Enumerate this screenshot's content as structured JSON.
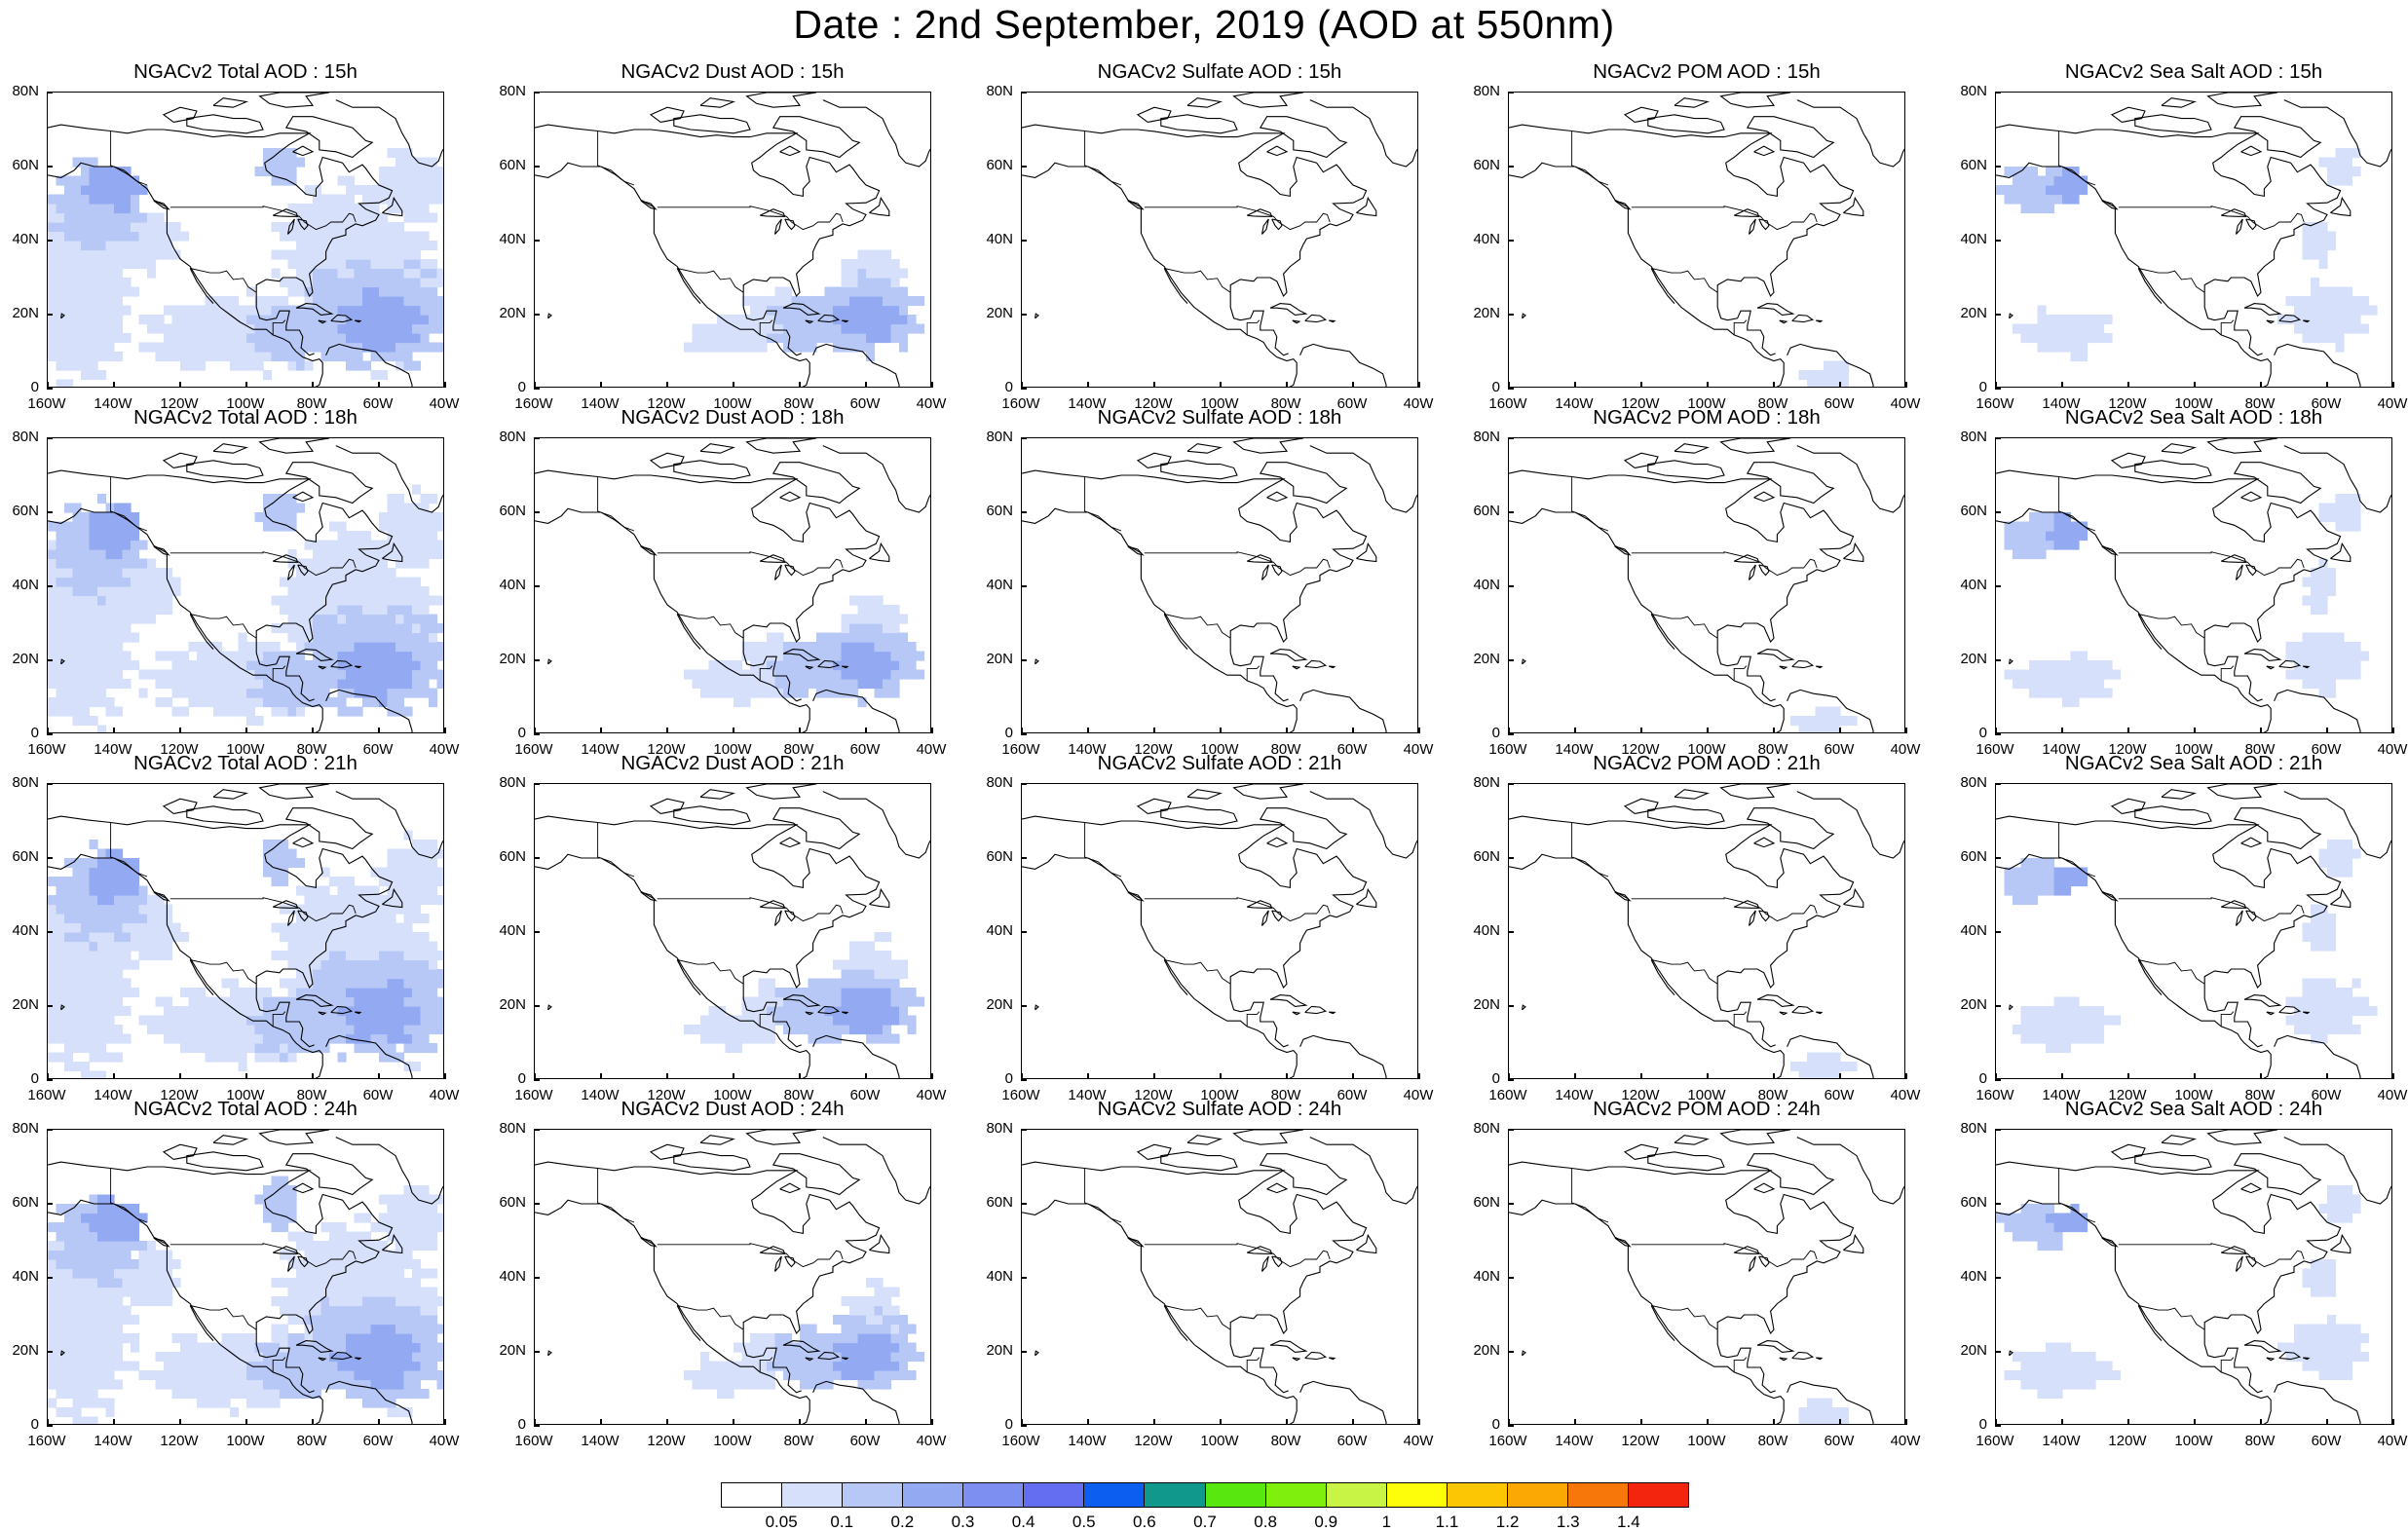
{
  "title": "Date : 2nd September, 2019 (AOD at 550nm)",
  "panel_titles": [
    [
      "NGACv2 Total AOD : 15h",
      "NGACv2 Dust AOD : 15h",
      "NGACv2 Sulfate AOD : 15h",
      "NGACv2 POM AOD : 15h",
      "NGACv2 Sea Salt AOD : 15h"
    ],
    [
      "NGACv2 Total AOD : 18h",
      "NGACv2 Dust AOD : 18h",
      "NGACv2 Sulfate AOD : 18h",
      "NGACv2 POM AOD : 18h",
      "NGACv2 Sea Salt AOD : 18h"
    ],
    [
      "NGACv2 Total AOD : 21h",
      "NGACv2 Dust AOD : 21h",
      "NGACv2 Sulfate AOD : 21h",
      "NGACv2 POM AOD : 21h",
      "NGACv2 Sea Salt AOD : 21h"
    ],
    [
      "NGACv2 Total AOD : 24h",
      "NGACv2 Dust AOD : 24h",
      "NGACv2 Sulfate AOD : 24h",
      "NGACv2 POM AOD : 24h",
      "NGACv2 Sea Salt  AOD : 24h"
    ]
  ],
  "lat_labels": [
    "80N",
    "60N",
    "40N",
    "20N",
    "0"
  ],
  "lon_labels": [
    "160W",
    "140W",
    "120W",
    "100W",
    "80W",
    "60W",
    "40W"
  ],
  "colorbar": {
    "colors": [
      "#ffffff",
      "#d6e0fb",
      "#b7c8f7",
      "#93aaf3",
      "#7d8ff0",
      "#636ff0",
      "#0c5ef0",
      "#10988d",
      "#58e810",
      "#7ff00e",
      "#c8f446",
      "#fefe0a",
      "#fdc605",
      "#fba704",
      "#f8770a",
      "#f4250f"
    ],
    "labels": [
      "0.05",
      "0.1",
      "0.2",
      "0.3",
      "0.4",
      "0.5",
      "0.6",
      "0.7",
      "0.8",
      "0.9",
      "1",
      "1.1",
      "1.2",
      "1.3",
      "1.4"
    ]
  },
  "fields": {
    "total": "light-to-medium blue AOD over Pacific, eastern US, Atlantic and Caribbean",
    "dust": "blue AOD over Gulf of Mexico, Caribbean and subtropical Atlantic",
    "sulfate": "near-zero AOD",
    "pom": "near-zero AOD with small patch over northern South America",
    "seasalt": "light blue AOD over NE Pacific, Labrador Sea and Atlantic"
  }
}
